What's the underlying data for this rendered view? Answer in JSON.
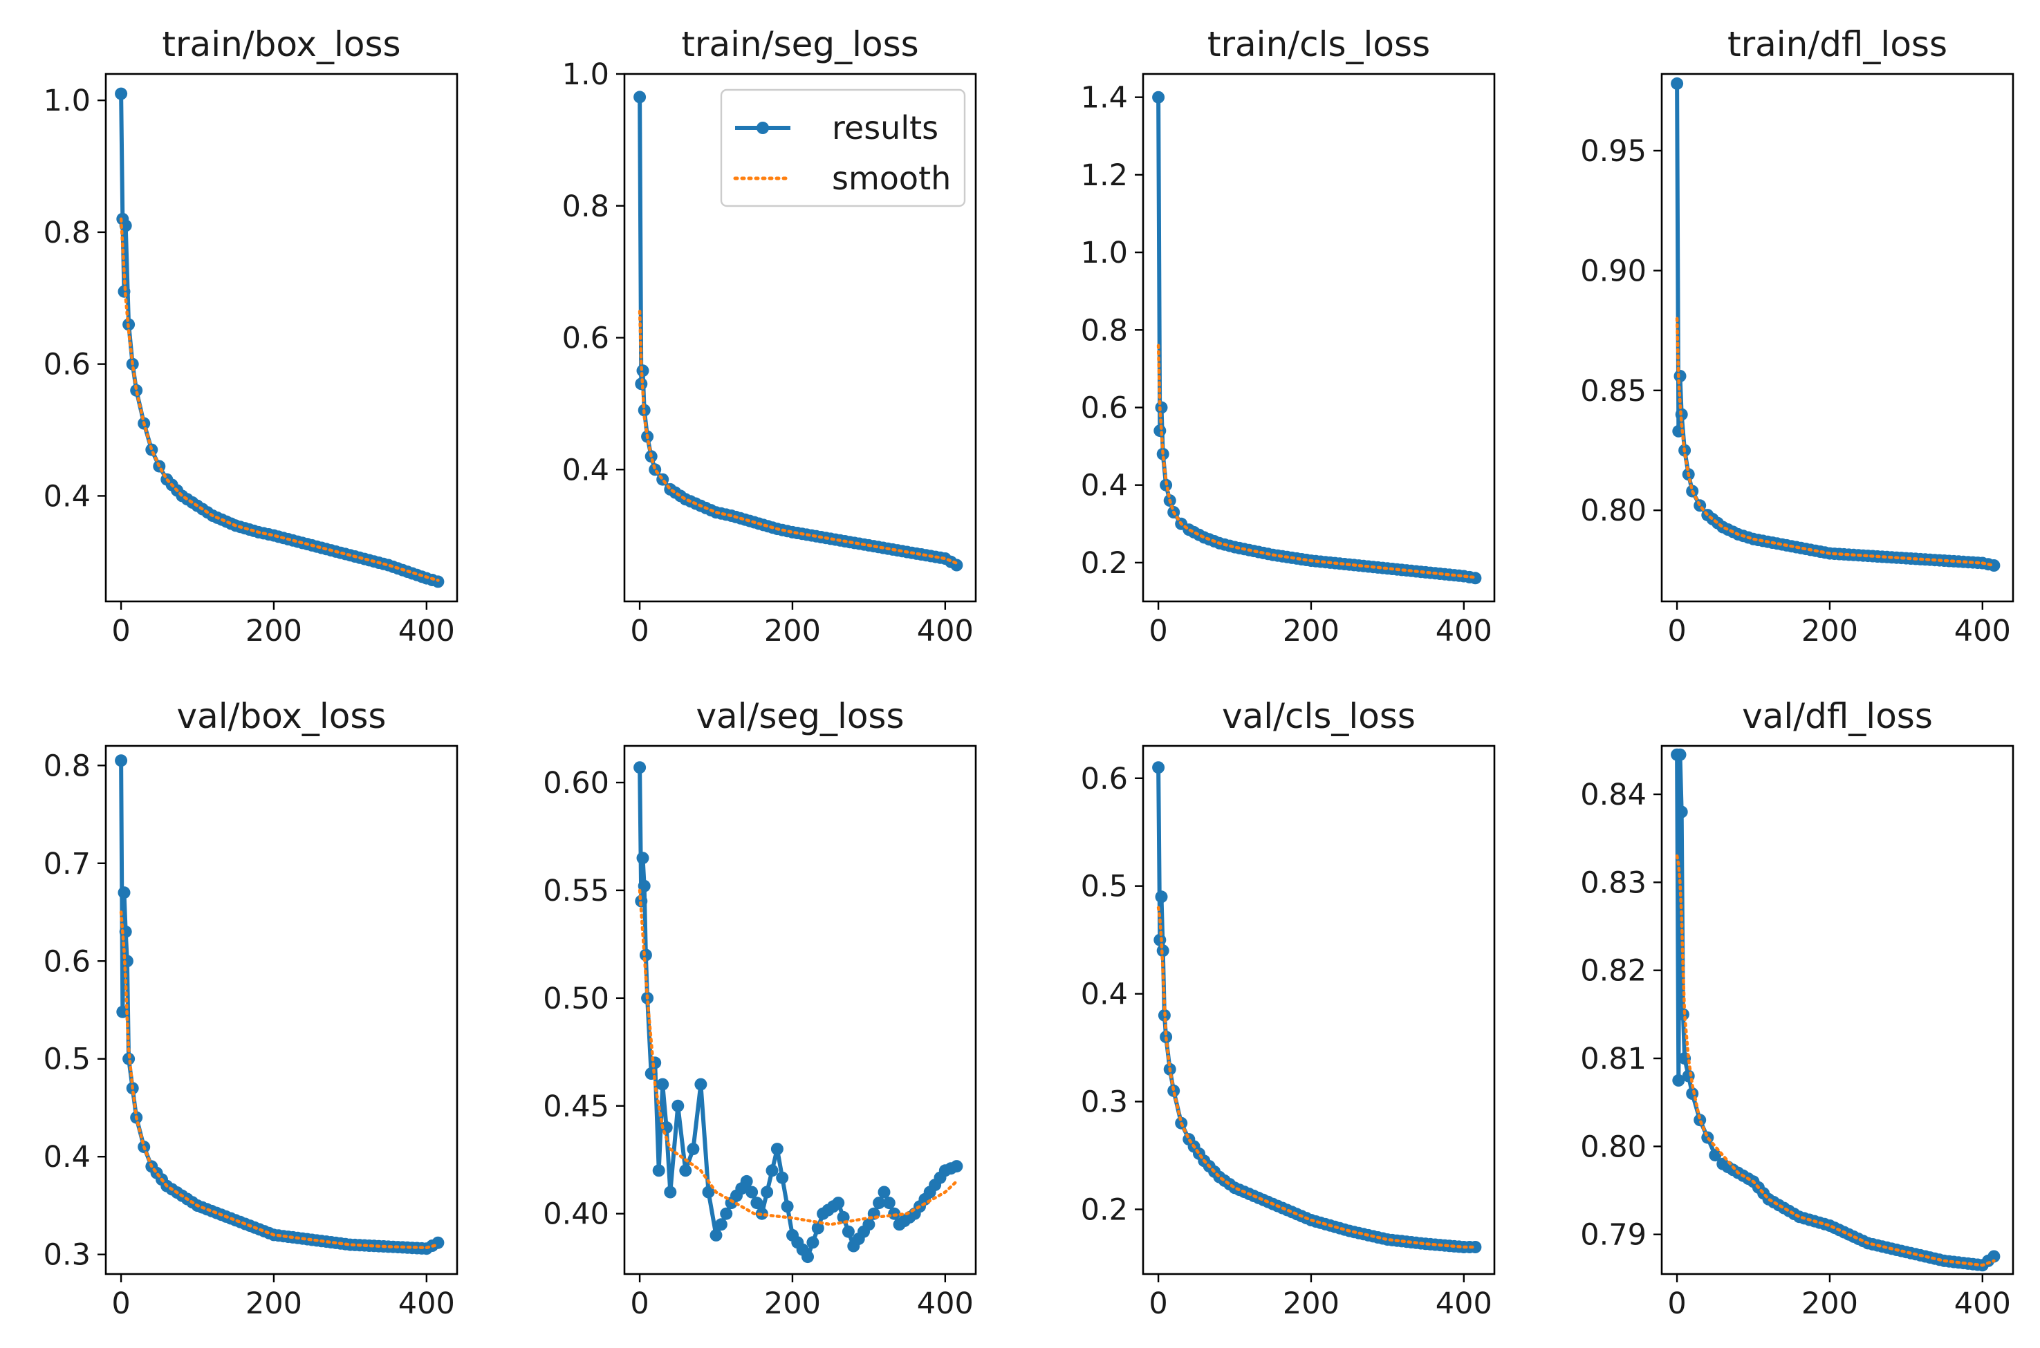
{
  "colors": {
    "results": "#1f77b4",
    "smooth": "#ff7f0e",
    "axes": "#000000"
  },
  "legend": {
    "results": "results",
    "smooth": "smooth",
    "placement": "top-right",
    "panel": 1
  },
  "chart_data": [
    {
      "type": "line",
      "title": "train/box_loss",
      "xlabel": "",
      "ylabel": "",
      "xlim": [
        -20,
        440
      ],
      "ylim": [
        0.24,
        1.04
      ],
      "xticks": [
        0,
        200,
        400
      ],
      "xtick_labels": [
        "0",
        "200",
        "400"
      ],
      "yticks": [
        0.4,
        0.6,
        0.8,
        1.0
      ],
      "ytick_labels": [
        "0.4",
        "0.6",
        "0.8",
        "1.0"
      ],
      "series": [
        {
          "name": "results",
          "x": [
            0,
            2,
            4,
            6,
            10,
            15,
            20,
            30,
            40,
            50,
            60,
            80,
            100,
            120,
            150,
            180,
            200,
            250,
            300,
            350,
            400,
            415
          ],
          "y": [
            1.01,
            0.82,
            0.71,
            0.81,
            0.66,
            0.6,
            0.56,
            0.51,
            0.47,
            0.445,
            0.425,
            0.4,
            0.385,
            0.37,
            0.355,
            0.345,
            0.34,
            0.325,
            0.31,
            0.295,
            0.275,
            0.27
          ]
        },
        {
          "name": "smooth",
          "x": [
            0,
            2,
            4,
            6,
            10,
            15,
            20,
            30,
            40,
            50,
            60,
            80,
            100,
            120,
            150,
            180,
            200,
            250,
            300,
            350,
            400,
            415
          ],
          "y": [
            0.82,
            0.78,
            0.74,
            0.7,
            0.65,
            0.6,
            0.56,
            0.51,
            0.47,
            0.445,
            0.425,
            0.4,
            0.385,
            0.37,
            0.355,
            0.345,
            0.34,
            0.325,
            0.31,
            0.295,
            0.277,
            0.272
          ]
        }
      ]
    },
    {
      "type": "line",
      "title": "train/seg_loss",
      "xlabel": "",
      "ylabel": "",
      "xlim": [
        -20,
        440
      ],
      "ylim": [
        0.2,
        1.0
      ],
      "xticks": [
        0,
        200,
        400
      ],
      "xtick_labels": [
        "0",
        "200",
        "400"
      ],
      "yticks": [
        0.4,
        0.6,
        0.8,
        1.0
      ],
      "ytick_labels": [
        "0.4",
        "0.6",
        "0.8",
        "1.0"
      ],
      "series": [
        {
          "name": "results",
          "x": [
            0,
            2,
            4,
            6,
            10,
            15,
            20,
            30,
            40,
            60,
            80,
            100,
            120,
            150,
            180,
            200,
            250,
            300,
            350,
            400,
            415
          ],
          "y": [
            0.965,
            0.53,
            0.55,
            0.49,
            0.45,
            0.42,
            0.4,
            0.385,
            0.37,
            0.355,
            0.345,
            0.335,
            0.33,
            0.32,
            0.31,
            0.305,
            0.295,
            0.285,
            0.275,
            0.265,
            0.255
          ]
        },
        {
          "name": "smooth",
          "x": [
            0,
            2,
            4,
            6,
            10,
            15,
            20,
            30,
            40,
            60,
            80,
            100,
            120,
            150,
            180,
            200,
            250,
            300,
            350,
            400,
            415
          ],
          "y": [
            0.64,
            0.56,
            0.52,
            0.48,
            0.45,
            0.42,
            0.4,
            0.385,
            0.37,
            0.355,
            0.345,
            0.335,
            0.33,
            0.32,
            0.31,
            0.305,
            0.295,
            0.285,
            0.275,
            0.265,
            0.258
          ]
        }
      ]
    },
    {
      "type": "line",
      "title": "train/cls_loss",
      "xlabel": "",
      "ylabel": "",
      "xlim": [
        -20,
        440
      ],
      "ylim": [
        0.1,
        1.46
      ],
      "xticks": [
        0,
        200,
        400
      ],
      "xtick_labels": [
        "0",
        "200",
        "400"
      ],
      "yticks": [
        0.2,
        0.4,
        0.6,
        0.8,
        1.0,
        1.2,
        1.4
      ],
      "ytick_labels": [
        "0.2",
        "0.4",
        "0.6",
        "0.8",
        "1.0",
        "1.2",
        "1.4"
      ],
      "series": [
        {
          "name": "results",
          "x": [
            0,
            2,
            4,
            6,
            10,
            15,
            20,
            30,
            40,
            60,
            80,
            100,
            150,
            200,
            250,
            300,
            350,
            400,
            415
          ],
          "y": [
            1.4,
            0.54,
            0.6,
            0.48,
            0.4,
            0.36,
            0.33,
            0.3,
            0.285,
            0.265,
            0.25,
            0.24,
            0.22,
            0.205,
            0.195,
            0.185,
            0.175,
            0.165,
            0.16
          ]
        },
        {
          "name": "smooth",
          "x": [
            0,
            2,
            4,
            6,
            10,
            15,
            20,
            30,
            40,
            60,
            80,
            100,
            150,
            200,
            250,
            300,
            350,
            400,
            415
          ],
          "y": [
            0.76,
            0.6,
            0.54,
            0.48,
            0.41,
            0.36,
            0.33,
            0.3,
            0.285,
            0.265,
            0.25,
            0.24,
            0.22,
            0.205,
            0.195,
            0.185,
            0.175,
            0.165,
            0.162
          ]
        }
      ]
    },
    {
      "type": "line",
      "title": "train/dfl_loss",
      "xlabel": "",
      "ylabel": "",
      "xlim": [
        -20,
        440
      ],
      "ylim": [
        0.762,
        0.982
      ],
      "xticks": [
        0,
        200,
        400
      ],
      "xtick_labels": [
        "0",
        "200",
        "400"
      ],
      "yticks": [
        0.8,
        0.85,
        0.9,
        0.95
      ],
      "ytick_labels": [
        "0.80",
        "0.85",
        "0.90",
        "0.95"
      ],
      "series": [
        {
          "name": "results",
          "x": [
            0,
            2,
            4,
            6,
            10,
            15,
            20,
            30,
            40,
            60,
            80,
            100,
            150,
            200,
            250,
            300,
            350,
            400,
            415
          ],
          "y": [
            0.978,
            0.833,
            0.856,
            0.84,
            0.825,
            0.815,
            0.808,
            0.802,
            0.798,
            0.793,
            0.79,
            0.788,
            0.785,
            0.782,
            0.781,
            0.78,
            0.779,
            0.778,
            0.777
          ]
        },
        {
          "name": "smooth",
          "x": [
            0,
            2,
            4,
            6,
            10,
            15,
            20,
            30,
            40,
            60,
            80,
            100,
            150,
            200,
            250,
            300,
            350,
            400,
            415
          ],
          "y": [
            0.88,
            0.855,
            0.845,
            0.836,
            0.824,
            0.815,
            0.808,
            0.802,
            0.798,
            0.793,
            0.79,
            0.788,
            0.785,
            0.782,
            0.781,
            0.78,
            0.779,
            0.778,
            0.777
          ]
        }
      ]
    },
    {
      "type": "line",
      "title": "val/box_loss",
      "xlabel": "",
      "ylabel": "",
      "xlim": [
        -20,
        440
      ],
      "ylim": [
        0.28,
        0.82
      ],
      "xticks": [
        0,
        200,
        400
      ],
      "xtick_labels": [
        "0",
        "200",
        "400"
      ],
      "yticks": [
        0.3,
        0.4,
        0.5,
        0.6,
        0.7,
        0.8
      ],
      "ytick_labels": [
        "0.3",
        "0.4",
        "0.5",
        "0.6",
        "0.7",
        "0.8"
      ],
      "series": [
        {
          "name": "results",
          "x": [
            0,
            2,
            4,
            6,
            8,
            10,
            15,
            20,
            30,
            40,
            60,
            80,
            100,
            150,
            200,
            250,
            300,
            350,
            400,
            415
          ],
          "y": [
            0.805,
            0.548,
            0.67,
            0.63,
            0.6,
            0.5,
            0.47,
            0.44,
            0.41,
            0.39,
            0.37,
            0.36,
            0.35,
            0.335,
            0.32,
            0.315,
            0.31,
            0.308,
            0.306,
            0.312
          ]
        },
        {
          "name": "smooth",
          "x": [
            0,
            2,
            4,
            6,
            8,
            10,
            15,
            20,
            30,
            40,
            60,
            80,
            100,
            150,
            200,
            250,
            300,
            350,
            400,
            415
          ],
          "y": [
            0.65,
            0.63,
            0.61,
            0.58,
            0.54,
            0.51,
            0.47,
            0.44,
            0.41,
            0.39,
            0.37,
            0.36,
            0.35,
            0.335,
            0.32,
            0.315,
            0.31,
            0.308,
            0.307,
            0.31
          ]
        }
      ]
    },
    {
      "type": "line",
      "title": "val/seg_loss",
      "xlabel": "",
      "ylabel": "",
      "xlim": [
        -20,
        440
      ],
      "ylim": [
        0.372,
        0.617
      ],
      "xticks": [
        0,
        200,
        400
      ],
      "xtick_labels": [
        "0",
        "200",
        "400"
      ],
      "yticks": [
        0.4,
        0.45,
        0.5,
        0.55,
        0.6
      ],
      "ytick_labels": [
        "0.40",
        "0.45",
        "0.50",
        "0.55",
        "0.60"
      ],
      "series": [
        {
          "name": "results",
          "x": [
            0,
            2,
            4,
            6,
            8,
            10,
            15,
            20,
            25,
            30,
            35,
            40,
            50,
            60,
            70,
            80,
            90,
            100,
            120,
            140,
            160,
            180,
            200,
            220,
            240,
            260,
            280,
            300,
            320,
            340,
            360,
            380,
            400,
            415
          ],
          "y": [
            0.607,
            0.545,
            0.565,
            0.552,
            0.52,
            0.5,
            0.465,
            0.47,
            0.42,
            0.46,
            0.44,
            0.41,
            0.45,
            0.42,
            0.43,
            0.46,
            0.41,
            0.39,
            0.405,
            0.415,
            0.4,
            0.43,
            0.39,
            0.38,
            0.4,
            0.405,
            0.385,
            0.395,
            0.41,
            0.395,
            0.4,
            0.41,
            0.42,
            0.422
          ]
        },
        {
          "name": "smooth",
          "x": [
            0,
            2,
            4,
            6,
            8,
            10,
            15,
            20,
            30,
            40,
            60,
            80,
            100,
            150,
            200,
            250,
            300,
            350,
            400,
            415
          ],
          "y": [
            0.55,
            0.54,
            0.53,
            0.52,
            0.51,
            0.5,
            0.48,
            0.46,
            0.44,
            0.43,
            0.425,
            0.42,
            0.41,
            0.4,
            0.398,
            0.395,
            0.398,
            0.4,
            0.41,
            0.415
          ]
        }
      ]
    },
    {
      "type": "line",
      "title": "val/cls_loss",
      "xlabel": "",
      "ylabel": "",
      "xlim": [
        -20,
        440
      ],
      "ylim": [
        0.14,
        0.63
      ],
      "xticks": [
        0,
        200,
        400
      ],
      "xtick_labels": [
        "0",
        "200",
        "400"
      ],
      "yticks": [
        0.2,
        0.3,
        0.4,
        0.5,
        0.6
      ],
      "ytick_labels": [
        "0.2",
        "0.3",
        "0.4",
        "0.5",
        "0.6"
      ],
      "series": [
        {
          "name": "results",
          "x": [
            0,
            2,
            4,
            6,
            8,
            10,
            15,
            20,
            30,
            40,
            60,
            80,
            100,
            150,
            200,
            250,
            300,
            350,
            400,
            415
          ],
          "y": [
            0.61,
            0.45,
            0.49,
            0.44,
            0.38,
            0.36,
            0.33,
            0.31,
            0.28,
            0.265,
            0.245,
            0.23,
            0.22,
            0.205,
            0.19,
            0.18,
            0.172,
            0.168,
            0.165,
            0.165
          ]
        },
        {
          "name": "smooth",
          "x": [
            0,
            2,
            4,
            6,
            8,
            10,
            15,
            20,
            30,
            40,
            60,
            80,
            100,
            150,
            200,
            250,
            300,
            350,
            400,
            415
          ],
          "y": [
            0.48,
            0.47,
            0.45,
            0.42,
            0.39,
            0.36,
            0.33,
            0.31,
            0.28,
            0.265,
            0.245,
            0.23,
            0.22,
            0.205,
            0.19,
            0.18,
            0.172,
            0.168,
            0.165,
            0.165
          ]
        }
      ]
    },
    {
      "type": "line",
      "title": "val/dfl_loss",
      "xlabel": "",
      "ylabel": "",
      "xlim": [
        -20,
        440
      ],
      "ylim": [
        0.7855,
        0.8455
      ],
      "xticks": [
        0,
        200,
        400
      ],
      "xtick_labels": [
        "0",
        "200",
        "400"
      ],
      "yticks": [
        0.79,
        0.8,
        0.81,
        0.82,
        0.83,
        0.84
      ],
      "ytick_labels": [
        "0.79",
        "0.80",
        "0.81",
        "0.82",
        "0.83",
        "0.84"
      ],
      "series": [
        {
          "name": "results",
          "x": [
            0,
            2,
            4,
            6,
            8,
            10,
            15,
            20,
            30,
            40,
            50,
            60,
            80,
            100,
            120,
            140,
            160,
            200,
            250,
            300,
            350,
            400,
            415
          ],
          "y": [
            0.8445,
            0.8075,
            0.8445,
            0.838,
            0.815,
            0.81,
            0.808,
            0.806,
            0.803,
            0.801,
            0.799,
            0.798,
            0.797,
            0.796,
            0.794,
            0.793,
            0.792,
            0.791,
            0.789,
            0.788,
            0.787,
            0.7865,
            0.7875
          ]
        },
        {
          "name": "smooth",
          "x": [
            0,
            2,
            4,
            6,
            8,
            10,
            15,
            20,
            30,
            40,
            50,
            60,
            80,
            100,
            120,
            140,
            160,
            200,
            250,
            300,
            350,
            400,
            415
          ],
          "y": [
            0.833,
            0.832,
            0.83,
            0.826,
            0.82,
            0.815,
            0.81,
            0.807,
            0.803,
            0.801,
            0.8,
            0.799,
            0.797,
            0.796,
            0.794,
            0.793,
            0.792,
            0.791,
            0.789,
            0.788,
            0.787,
            0.7865,
            0.787
          ]
        }
      ]
    }
  ]
}
